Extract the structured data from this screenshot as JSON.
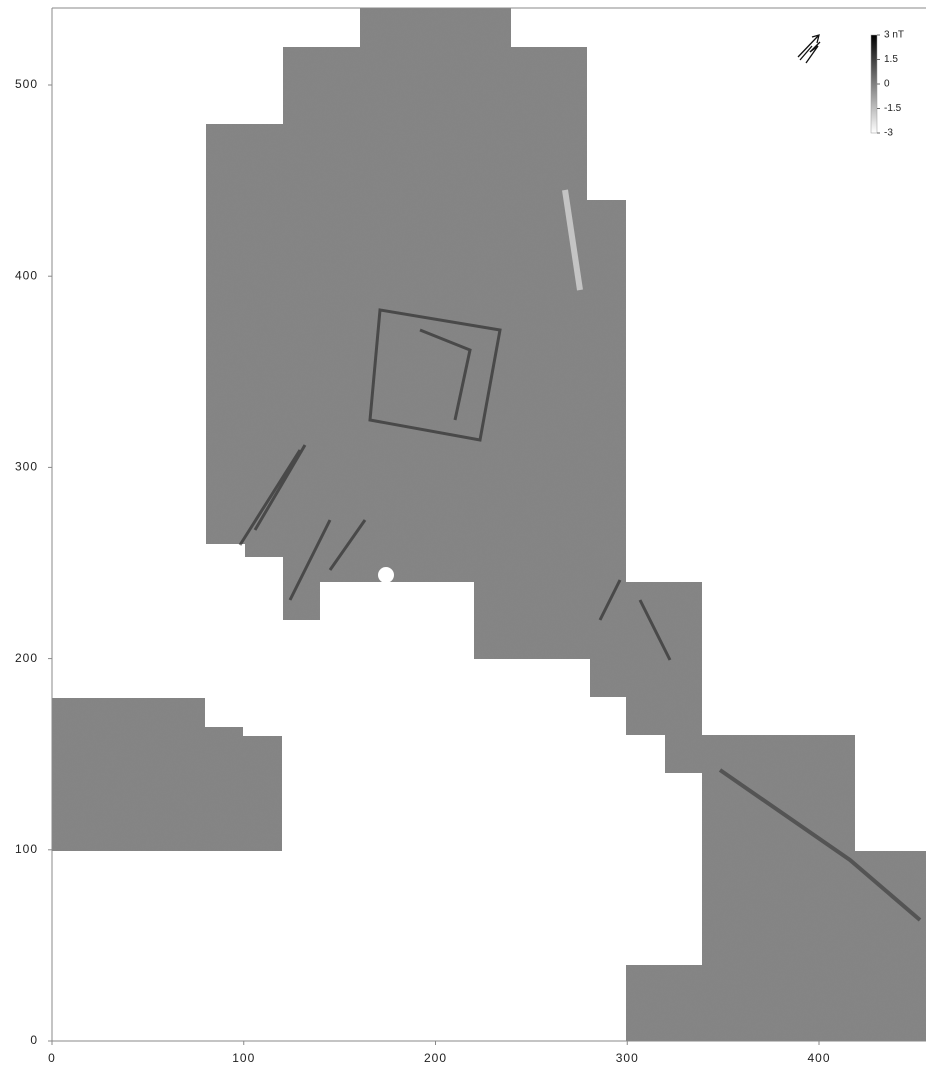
{
  "chart_data": {
    "type": "raster",
    "xlim": [
      0,
      455
    ],
    "ylim": [
      0,
      540
    ],
    "xticks": [
      0,
      100,
      200,
      300,
      400
    ],
    "yticks": [
      0,
      100,
      200,
      300,
      400,
      500
    ],
    "colorbar": {
      "lim": [
        -3,
        3
      ],
      "ticks": [
        {
          "value": 3,
          "label": "3 nT"
        },
        1.5,
        0,
        -1.5,
        -3
      ]
    }
  }
}
